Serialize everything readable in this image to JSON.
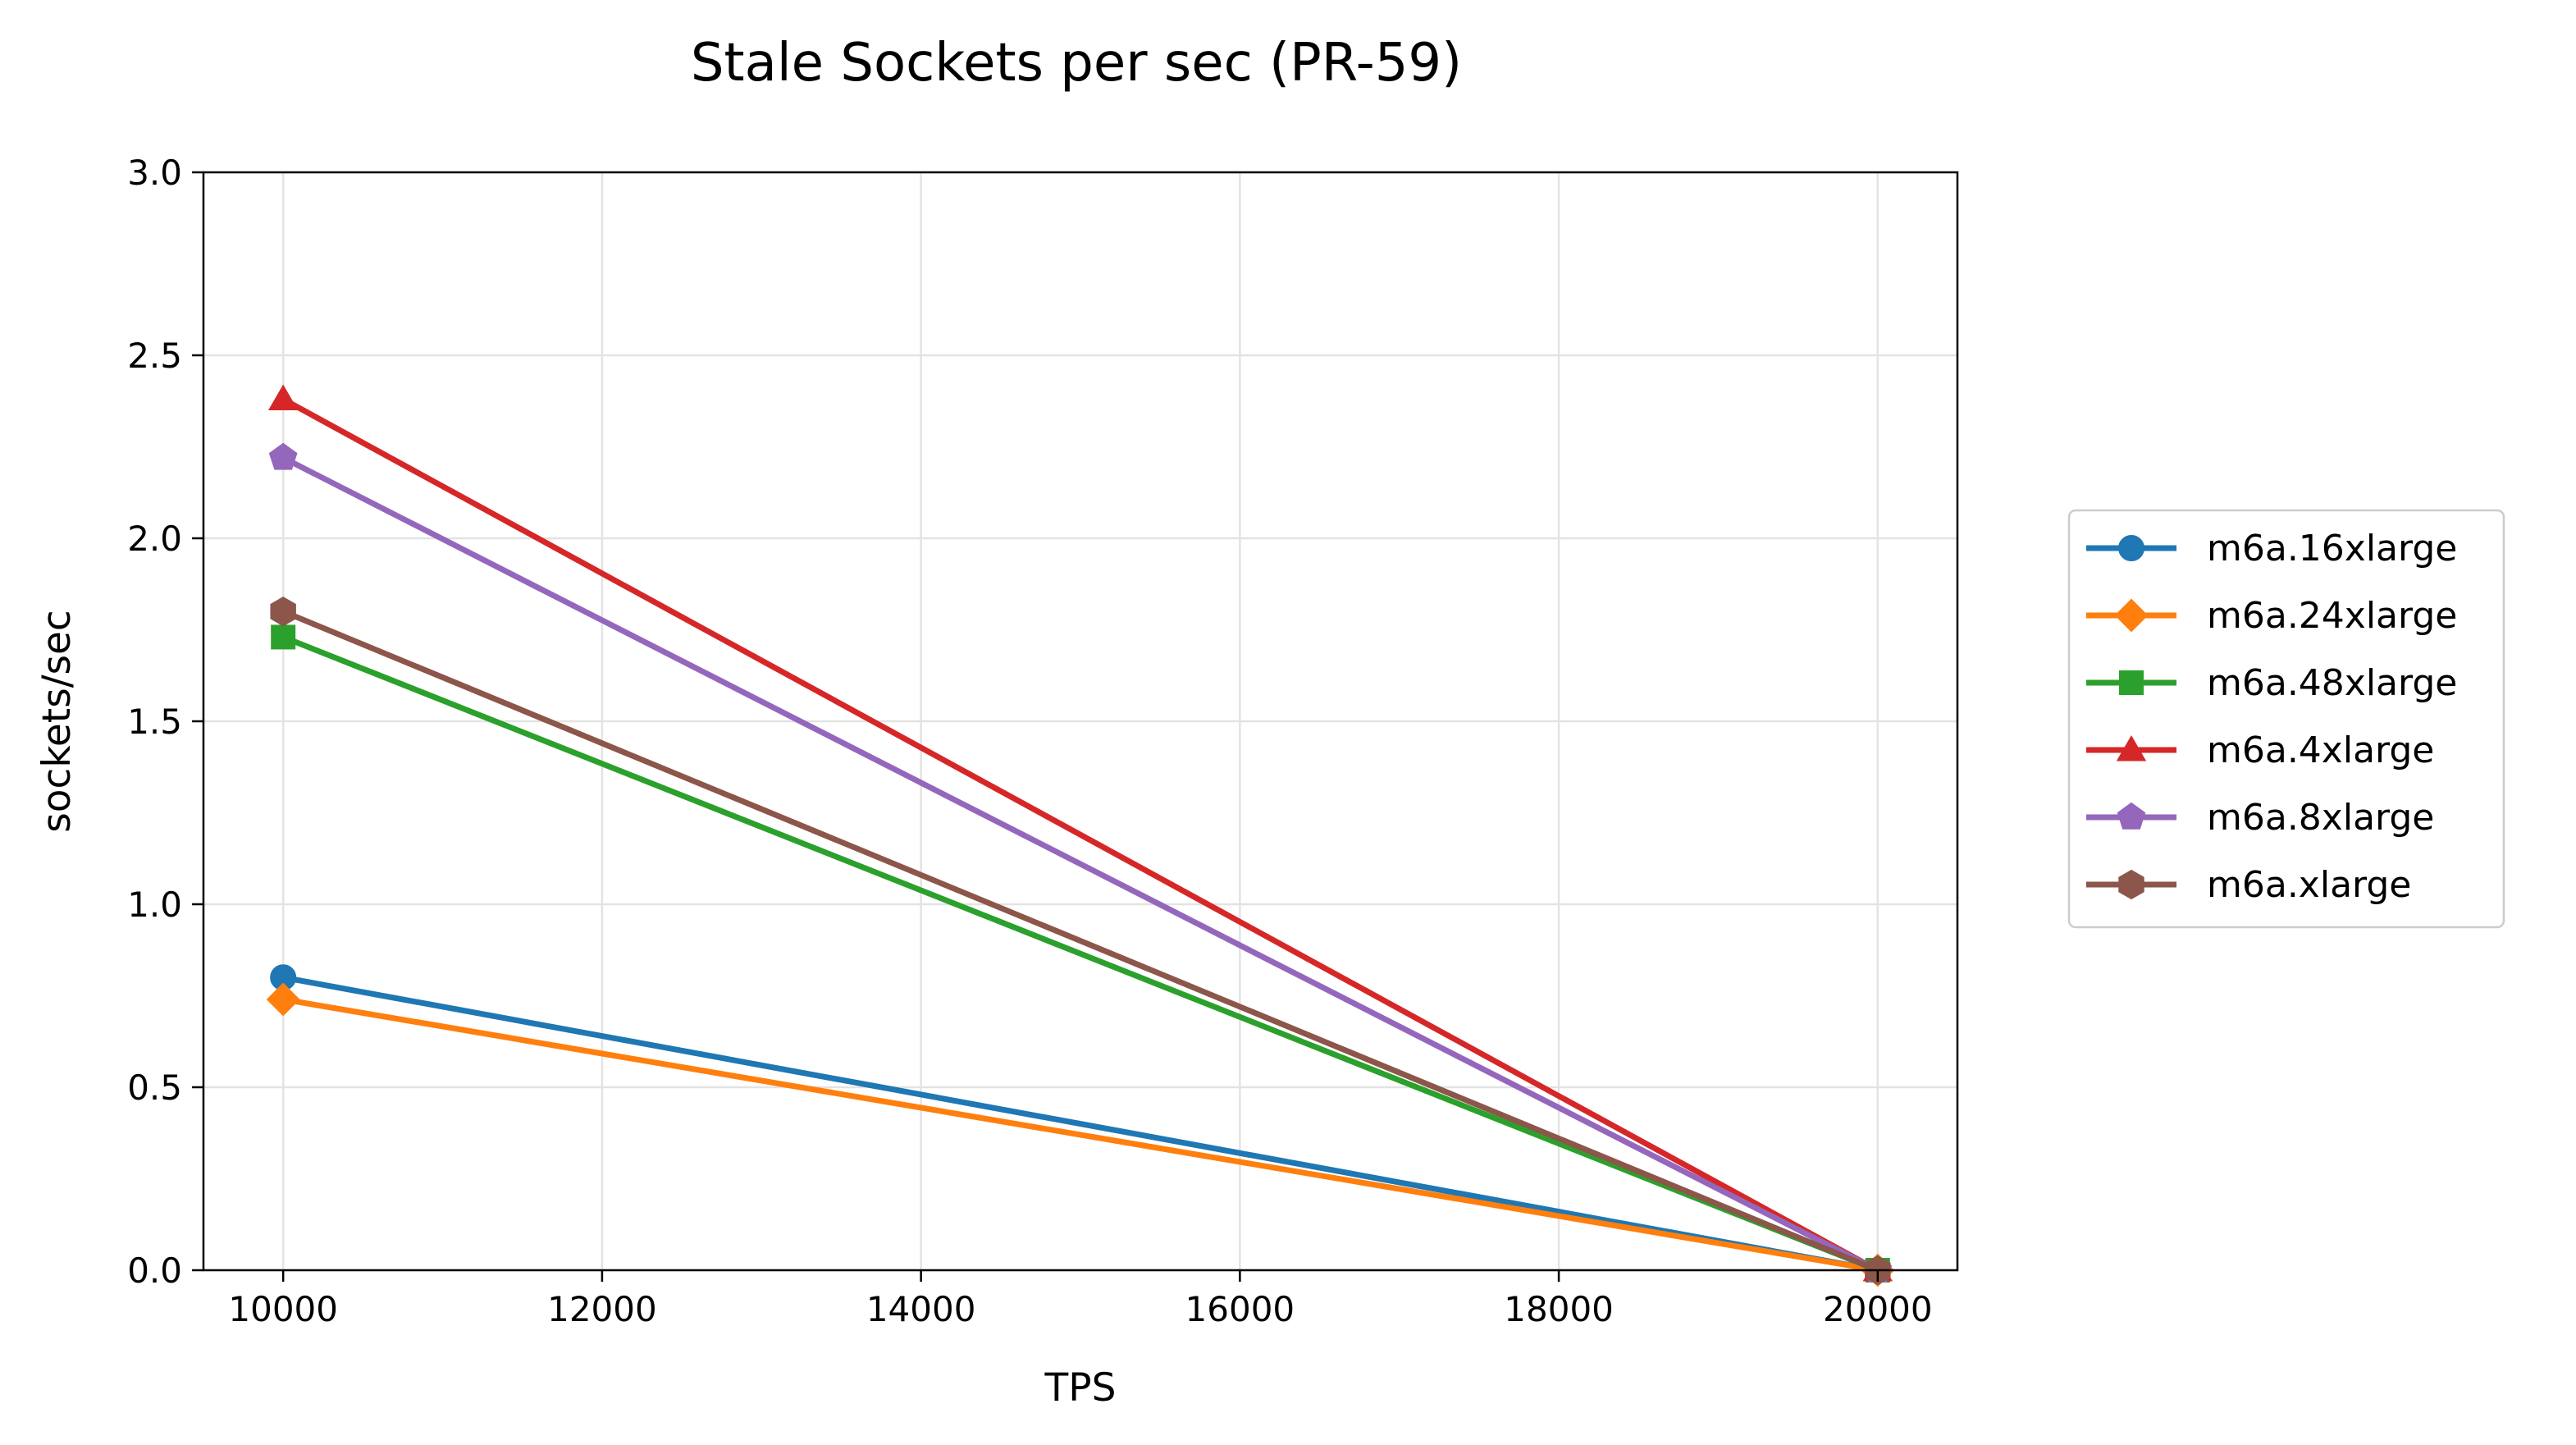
{
  "chart_data": {
    "type": "line",
    "title": "Stale Sockets per sec (PR-59)",
    "xlabel": "TPS",
    "ylabel": "sockets/sec",
    "xlim": [
      9500,
      20500
    ],
    "ylim": [
      0,
      3.0
    ],
    "xticks": [
      10000,
      12000,
      14000,
      16000,
      18000,
      20000
    ],
    "xtick_labels": [
      "10000",
      "12000",
      "14000",
      "16000",
      "18000",
      "20000"
    ],
    "yticks": [
      0,
      0.5,
      1.0,
      1.5,
      2.0,
      2.5,
      3.0
    ],
    "ytick_labels": [
      "0.0",
      "0.5",
      "1.0",
      "1.5",
      "2.0",
      "2.5",
      "3.0"
    ],
    "grid": true,
    "legend_position": "outside-right",
    "x": [
      10000,
      20000
    ],
    "series": [
      {
        "name": "m6a.16xlarge",
        "values": [
          0.8,
          0.0
        ],
        "color": "#1f77b4",
        "marker": "circle"
      },
      {
        "name": "m6a.24xlarge",
        "values": [
          0.74,
          0.0
        ],
        "color": "#ff7f0e",
        "marker": "diamond"
      },
      {
        "name": "m6a.48xlarge",
        "values": [
          1.73,
          0.0
        ],
        "color": "#2ca02c",
        "marker": "square"
      },
      {
        "name": "m6a.4xlarge",
        "values": [
          2.38,
          0.0
        ],
        "color": "#d62728",
        "marker": "triangle"
      },
      {
        "name": "m6a.8xlarge",
        "values": [
          2.22,
          0.0
        ],
        "color": "#9467bd",
        "marker": "pentagon"
      },
      {
        "name": "m6a.xlarge",
        "values": [
          1.8,
          0.0
        ],
        "color": "#8c564b",
        "marker": "hexagon"
      }
    ]
  }
}
